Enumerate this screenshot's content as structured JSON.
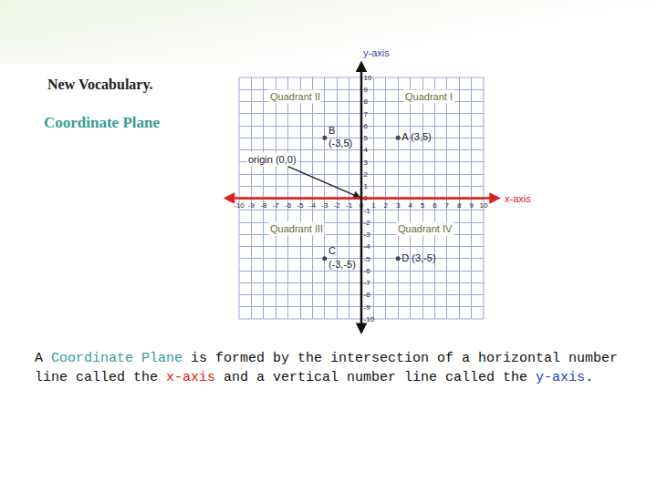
{
  "slide": {
    "heading": "New Vocabulary.",
    "subheading": "Coordinate Plane",
    "caption": [
      {
        "text": "A "
      },
      {
        "text": "Coordinate Plane",
        "color": "#3a9a9a"
      },
      {
        "text": " is formed by the intersection of a horizontal number line called the "
      },
      {
        "text": "x-axis",
        "color": "#d62020"
      },
      {
        "text": " and a vertical number line called the "
      },
      {
        "text": "y-axis",
        "color": "#2040c0"
      },
      {
        "text": "."
      }
    ]
  },
  "chart_data": {
    "type": "scatter",
    "x": [
      3,
      -3,
      -3,
      3
    ],
    "values": [
      5,
      5,
      -5,
      -5
    ],
    "value_labels": [
      [
        "A (3,5)"
      ],
      [
        "B",
        "(-3,5)"
      ],
      [
        "C",
        "(-3,-5)"
      ],
      [
        "D (3,-5)"
      ]
    ],
    "color": "#444444",
    "x_label": "x-axis",
    "y_label": "y-axis",
    "xlim": [
      -10,
      10
    ],
    "ylim": [
      -10,
      10
    ],
    "xticks": [
      -10,
      -9,
      -8,
      -7,
      -6,
      -5,
      -4,
      -3,
      -2,
      -1,
      0,
      1,
      2,
      3,
      4,
      5,
      6,
      7,
      8,
      9,
      10
    ],
    "yticks": [
      -10,
      -9,
      -8,
      -7,
      -6,
      -5,
      -4,
      -3,
      -2,
      -1,
      0,
      1,
      2,
      3,
      4,
      5,
      6,
      7,
      8,
      9,
      10
    ],
    "grid": true,
    "annotations": [
      {
        "text": "Quadrant II",
        "x": -5.4,
        "y": 8.4
      },
      {
        "text": "Quadrant I",
        "x": 5.5,
        "y": 8.4
      },
      {
        "text": "Quadrant III",
        "x": -5.3,
        "y": -2.5
      },
      {
        "text": "Quadrant IV",
        "x": 5.2,
        "y": -2.5
      },
      {
        "text": "origin (0,0)",
        "x": -7.3,
        "y": 3.2,
        "arrow_to": [
          0,
          0
        ]
      }
    ]
  }
}
